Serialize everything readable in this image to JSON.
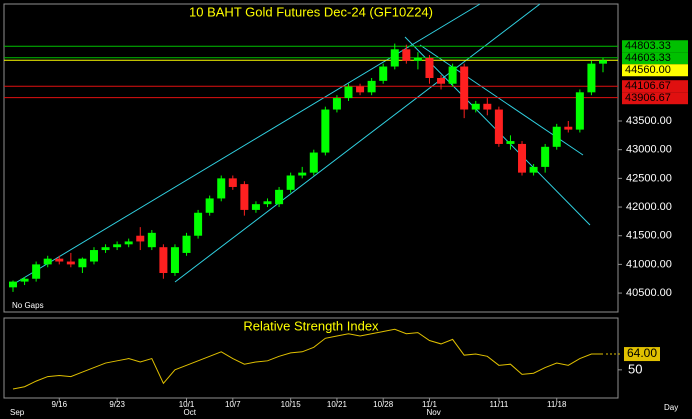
{
  "chart_data": [
    {
      "type": "candlestick",
      "title": "10 BAHT Gold Futures Dec-24 (GF10Z24)",
      "annotation": "No Gaps",
      "up_color": "#00ff00",
      "down_color": "#ff2020",
      "open": [
        40600,
        40700,
        40750,
        41000,
        41100,
        41050,
        40950,
        41050,
        41250,
        41300,
        41350,
        41500,
        41300,
        41300,
        40850,
        41200,
        41500,
        41900,
        42150,
        42500,
        42400,
        41950,
        42050,
        42050,
        42300,
        42550,
        42600,
        42950,
        43700,
        43900,
        44100,
        44000,
        44200,
        44450,
        44750,
        44550,
        44600,
        44250,
        44150,
        44450,
        43700,
        43800,
        43700,
        43100,
        43100,
        42600,
        42700,
        43050,
        43400,
        43350,
        44000,
        44500
      ],
      "high": [
        40720,
        40780,
        41050,
        41150,
        41150,
        41200,
        41120,
        41300,
        41350,
        41400,
        41450,
        41650,
        41600,
        41350,
        41350,
        41550,
        41950,
        42200,
        42550,
        42550,
        42450,
        42100,
        42150,
        42350,
        42600,
        42700,
        43000,
        43750,
        43950,
        44150,
        44150,
        44250,
        44500,
        44850,
        44830,
        44700,
        44650,
        44300,
        44500,
        44500,
        43850,
        43900,
        43750,
        43250,
        43150,
        42750,
        43100,
        43450,
        43500,
        44050,
        44550,
        44600
      ],
      "low": [
        40520,
        40640,
        40700,
        40950,
        41000,
        40950,
        40850,
        41000,
        41200,
        41250,
        41300,
        41250,
        41250,
        40750,
        40800,
        41150,
        41450,
        41850,
        42100,
        42300,
        41850,
        41900,
        42000,
        42000,
        42250,
        42500,
        42550,
        42900,
        43650,
        43850,
        43950,
        43950,
        44150,
        44400,
        44500,
        44400,
        44150,
        44050,
        44100,
        43550,
        43650,
        43600,
        43050,
        43000,
        42550,
        42550,
        42600,
        43000,
        43300,
        43300,
        43950,
        44350
      ],
      "close": [
        40700,
        40750,
        41000,
        41100,
        41050,
        41000,
        41100,
        41250,
        41300,
        41350,
        41400,
        41400,
        41550,
        40850,
        41300,
        41500,
        41900,
        42150,
        42500,
        42350,
        41950,
        42050,
        42100,
        42300,
        42550,
        42600,
        42950,
        43700,
        43900,
        44100,
        44000,
        44200,
        44450,
        44750,
        44550,
        44600,
        44250,
        44150,
        44450,
        43700,
        43800,
        43700,
        43100,
        43150,
        42600,
        42700,
        43050,
        43400,
        43350,
        44000,
        44500,
        44560
      ],
      "ylim": [
        40170,
        45540
      ],
      "yticks": [
        {
          "value": 43500,
          "label": "43500.00"
        },
        {
          "value": 43000,
          "label": "43000.00"
        },
        {
          "value": 42500,
          "label": "42500.00"
        },
        {
          "value": 42000,
          "label": "42000.00"
        },
        {
          "value": 41500,
          "label": "41500.00"
        },
        {
          "value": 41000,
          "label": "41000.00"
        },
        {
          "value": 40500,
          "label": "40500.00"
        }
      ],
      "levels": [
        {
          "value": 44803.33,
          "label": "44803.33",
          "color": "#00c000"
        },
        {
          "value": 44603.33,
          "label": "44603.33",
          "color": "#00c000"
        },
        {
          "value": 44560,
          "label": "44560.00",
          "color": "#ffff00"
        },
        {
          "value": 44106.67,
          "label": "44106.67",
          "color": "#e01010"
        },
        {
          "value": 43906.67,
          "label": "43906.67",
          "color": "#e01010"
        }
      ]
    },
    {
      "type": "line",
      "title": "Relative Strength Index",
      "color": "#e0c000",
      "values": [
        33,
        35,
        40,
        44,
        45,
        44,
        48,
        52,
        56,
        58,
        60,
        57,
        60,
        38,
        50,
        54,
        58,
        62,
        66,
        60,
        55,
        57,
        58,
        62,
        65,
        66,
        70,
        78,
        80,
        82,
        80,
        82,
        84,
        86,
        82,
        83,
        76,
        73,
        77,
        63,
        64,
        62,
        54,
        55,
        46,
        47,
        52,
        56,
        54,
        60,
        64,
        64
      ],
      "last_label": "64.00",
      "ylim": [
        25,
        96
      ],
      "yticks": [
        50
      ],
      "categories": [
        null,
        null,
        null,
        null,
        "9/16",
        null,
        null,
        null,
        null,
        "9/23",
        null,
        null,
        null,
        null,
        null,
        "10/1",
        null,
        null,
        null,
        "10/7",
        null,
        null,
        null,
        null,
        "10/15",
        null,
        null,
        null,
        "10/21",
        null,
        null,
        null,
        "10/28",
        null,
        null,
        null,
        "11/1",
        null,
        null,
        null,
        null,
        null,
        "11/11",
        null,
        null,
        null,
        null,
        "11/18",
        null,
        null,
        null,
        null
      ],
      "month_row": [
        "Sep",
        null,
        null,
        null,
        null,
        null,
        null,
        null,
        null,
        null,
        null,
        null,
        null,
        null,
        null,
        "Oct",
        null,
        null,
        null,
        null,
        null,
        null,
        null,
        null,
        null,
        null,
        null,
        null,
        null,
        null,
        null,
        null,
        null,
        null,
        null,
        null,
        "Nov",
        null,
        null,
        null,
        null,
        null,
        null,
        null,
        null,
        null,
        null,
        null,
        null,
        null,
        null,
        null
      ],
      "x_axis_label": "Day"
    }
  ]
}
